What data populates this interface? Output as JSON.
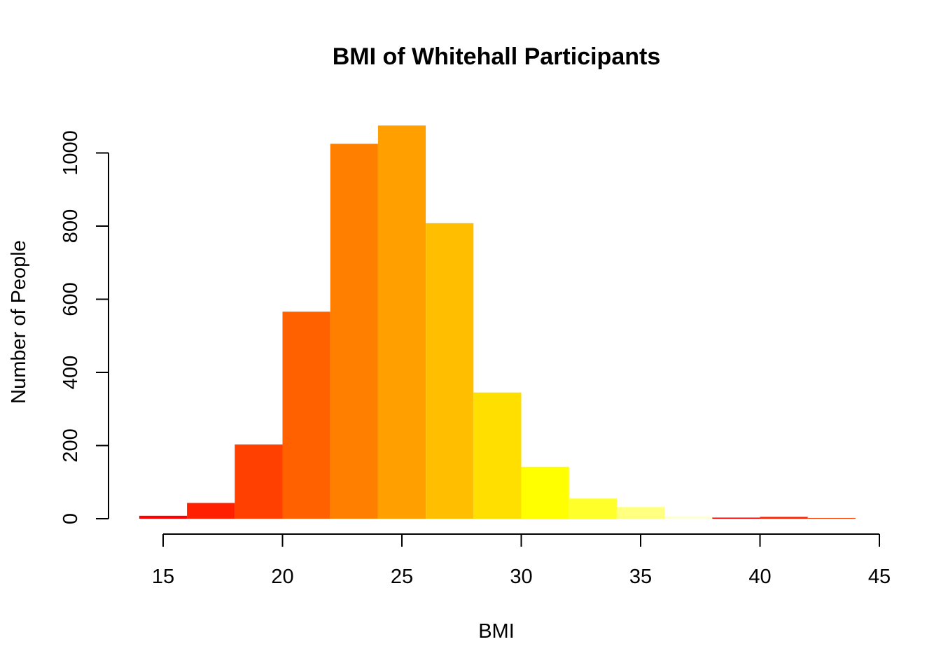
{
  "chart_data": {
    "type": "bar",
    "subtype": "histogram",
    "title": "BMI of Whitehall Participants",
    "xlabel": "BMI",
    "ylabel": "Number of People",
    "xlim": [
      14,
      44
    ],
    "ylim": [
      0,
      1080
    ],
    "x_ticks": [
      15,
      20,
      25,
      30,
      35,
      40,
      45
    ],
    "y_ticks": [
      0,
      200,
      400,
      600,
      800,
      1000
    ],
    "bins": [
      {
        "start": 14,
        "end": 16,
        "count": 8,
        "color": "#FF0000"
      },
      {
        "start": 16,
        "end": 18,
        "count": 43,
        "color": "#FF2000"
      },
      {
        "start": 18,
        "end": 20,
        "count": 203,
        "color": "#FF4000"
      },
      {
        "start": 20,
        "end": 22,
        "count": 566,
        "color": "#FF6000"
      },
      {
        "start": 22,
        "end": 24,
        "count": 1025,
        "color": "#FF8000"
      },
      {
        "start": 24,
        "end": 26,
        "count": 1075,
        "color": "#FF9F00"
      },
      {
        "start": 26,
        "end": 28,
        "count": 808,
        "color": "#FFBF00"
      },
      {
        "start": 28,
        "end": 30,
        "count": 345,
        "color": "#FFDF00"
      },
      {
        "start": 30,
        "end": 32,
        "count": 142,
        "color": "#FFFF00"
      },
      {
        "start": 32,
        "end": 34,
        "count": 55,
        "color": "#FFFF2A"
      },
      {
        "start": 34,
        "end": 36,
        "count": 32,
        "color": "#FFFF80"
      },
      {
        "start": 36,
        "end": 38,
        "count": 7,
        "color": "#FFFFD5"
      },
      {
        "start": 38,
        "end": 40,
        "count": 3,
        "color": "#FF0000"
      },
      {
        "start": 40,
        "end": 42,
        "count": 5,
        "color": "#FF2000"
      },
      {
        "start": 42,
        "end": 44,
        "count": 2,
        "color": "#FF4000"
      }
    ]
  }
}
